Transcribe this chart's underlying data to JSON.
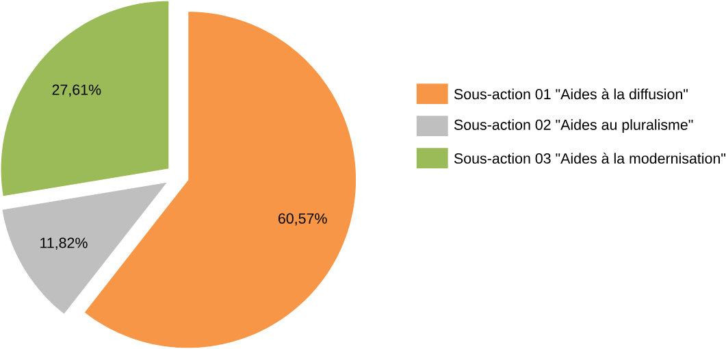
{
  "chart_data": {
    "type": "pie",
    "categories": [
      "Sous-action 01 \"Aides à la diffusion\"",
      "Sous-action 02 \"Aides au pluralisme\"",
      "Sous-action 03 \"Aides à la modernisation\""
    ],
    "values": [
      60.57,
      11.82,
      27.61
    ],
    "value_labels": [
      "60,57%",
      "11,82%",
      "27,61%"
    ],
    "colors": [
      "#f79646",
      "#bfbfbf",
      "#9bbb59"
    ],
    "legend": "right"
  }
}
